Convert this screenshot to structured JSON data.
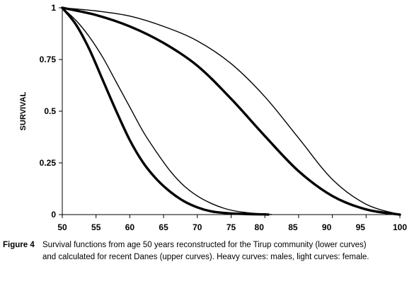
{
  "caption": {
    "label": "Figure 4",
    "text_line1": "Survival functions from age 50 years reconstructed for the Tirup community (lower curves)",
    "text_line2": "and calculated for recent Danes (upper curves). Heavy curves: males, light curves: female."
  },
  "chart_data": {
    "type": "line",
    "title": "",
    "xlabel": "",
    "ylabel": "SURVIVAL",
    "xlim": [
      50,
      100
    ],
    "ylim": [
      0,
      1
    ],
    "x_tick_labels": [
      "50",
      "55",
      "60",
      "65",
      "70",
      "75",
      "80",
      "85",
      "90",
      "95",
      "100"
    ],
    "y_tick_labels": [
      "0",
      "0.25",
      "0.5",
      "0.75",
      "1"
    ],
    "grid": false,
    "legend": "none",
    "series": [
      {
        "weight": "heavy",
        "x": [
          50,
          52,
          54,
          56,
          58,
          60,
          62,
          64,
          66,
          68,
          70,
          72,
          74,
          76,
          78,
          80,
          80.5
        ],
        "y": [
          1.0,
          0.92,
          0.8,
          0.65,
          0.5,
          0.36,
          0.25,
          0.17,
          0.11,
          0.065,
          0.035,
          0.016,
          0.008,
          0.004,
          0.002,
          0.001,
          0.0
        ]
      },
      {
        "weight": "light",
        "x": [
          50,
          52,
          54,
          56,
          58,
          60,
          62,
          64,
          66,
          68,
          70,
          72,
          74,
          76,
          78,
          80,
          81
        ],
        "y": [
          1.0,
          0.94,
          0.86,
          0.76,
          0.64,
          0.52,
          0.4,
          0.3,
          0.21,
          0.14,
          0.09,
          0.055,
          0.03,
          0.015,
          0.007,
          0.003,
          0.0
        ]
      },
      {
        "weight": "heavy",
        "x": [
          50,
          55,
          60,
          65,
          70,
          75,
          80,
          85,
          90,
          95,
          100
        ],
        "y": [
          1.0,
          0.965,
          0.91,
          0.83,
          0.72,
          0.56,
          0.38,
          0.21,
          0.09,
          0.025,
          0.0
        ]
      },
      {
        "weight": "light",
        "x": [
          50,
          55,
          60,
          65,
          70,
          75,
          80,
          85,
          90,
          95,
          100
        ],
        "y": [
          1.0,
          0.985,
          0.96,
          0.91,
          0.84,
          0.73,
          0.57,
          0.37,
          0.17,
          0.05,
          0.0
        ]
      }
    ]
  }
}
